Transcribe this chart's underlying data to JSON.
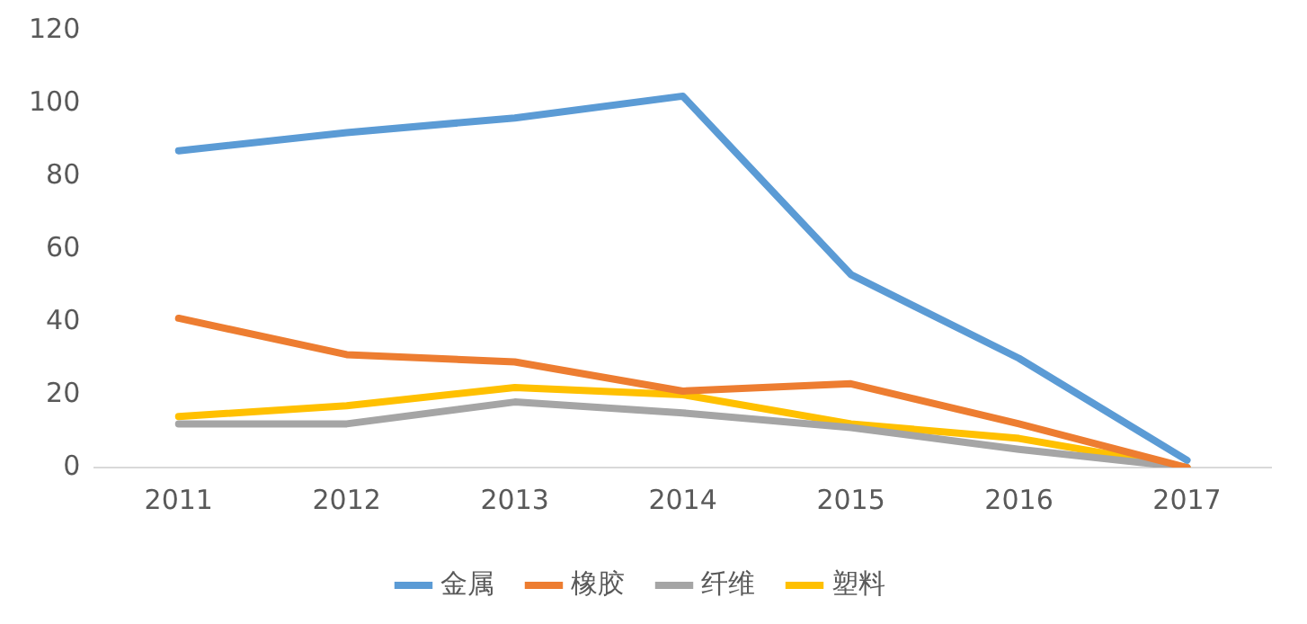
{
  "chart_data": {
    "type": "line",
    "categories": [
      "2011",
      "2012",
      "2013",
      "2014",
      "2015",
      "2016",
      "2017"
    ],
    "series": [
      {
        "name": "金属",
        "color": "#5b9bd5",
        "values": [
          87,
          92,
          96,
          102,
          53,
          30,
          2
        ]
      },
      {
        "name": "橡胶",
        "color": "#ed7d31",
        "values": [
          41,
          31,
          29,
          21,
          23,
          12,
          0
        ]
      },
      {
        "name": "纤维",
        "color": "#a5a5a5",
        "values": [
          12,
          12,
          18,
          15,
          11,
          5,
          0
        ]
      },
      {
        "name": "塑料",
        "color": "#ffc000",
        "values": [
          14,
          17,
          22,
          20,
          12,
          8,
          0
        ]
      }
    ],
    "ylim": [
      0,
      120
    ],
    "yticks": [
      0,
      20,
      40,
      60,
      80,
      100,
      120
    ],
    "grid": false,
    "legend": "bottom",
    "marker": "none",
    "line_style": "solid"
  }
}
